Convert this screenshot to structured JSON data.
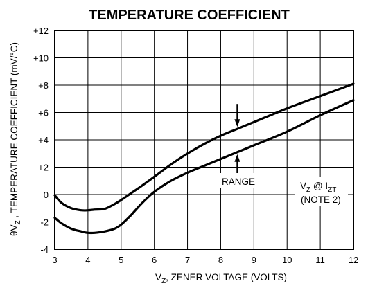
{
  "chart_data": {
    "type": "line",
    "title": "TEMPERATURE COEFFICIENT",
    "xlabel": {
      "main": "V",
      "sub": "Z",
      "rest": ", ZENER VOLTAGE (VOLTS)"
    },
    "ylabel": {
      "theta": "θV",
      "sub": "Z",
      "rest": " , TEMPERATURE COEFFICIENT (mV/°C)"
    },
    "xlim": [
      3,
      12
    ],
    "ylim": [
      -4,
      12
    ],
    "x_ticks": [
      3,
      4,
      5,
      6,
      7,
      8,
      9,
      10,
      11,
      12
    ],
    "y_ticks": [
      -4,
      -2,
      0,
      2,
      4,
      6,
      8,
      10,
      12
    ],
    "x_tick_labels": [
      "3",
      "4",
      "5",
      "6",
      "7",
      "8",
      "9",
      "10",
      "11",
      "12"
    ],
    "y_tick_labels": [
      "-4",
      "-2",
      "0",
      "+2",
      "+4",
      "+6",
      "+8",
      "+10",
      "+12"
    ],
    "grid": true,
    "line_color": "#000000",
    "series": [
      {
        "x": [
          3.0,
          3.2,
          3.5,
          3.8,
          4.0,
          4.2,
          4.5,
          4.8,
          5.0,
          5.3,
          5.6,
          6.0,
          6.5,
          7.0,
          7.5,
          8.0,
          8.5,
          9.0,
          10.0,
          11.0,
          12.0
        ],
        "values": [
          -0.05,
          -0.6,
          -1.0,
          -1.15,
          -1.15,
          -1.1,
          -1.05,
          -0.7,
          -0.4,
          0.1,
          0.6,
          1.3,
          2.2,
          3.0,
          3.7,
          4.3,
          4.8,
          5.3,
          6.3,
          7.2,
          8.1
        ]
      },
      {
        "x": [
          3.0,
          3.2,
          3.5,
          3.8,
          4.0,
          4.2,
          4.5,
          4.8,
          5.0,
          5.3,
          5.6,
          6.0,
          6.5,
          7.0,
          7.5,
          8.0,
          8.5,
          9.0,
          10.0,
          11.0,
          12.0
        ],
        "values": [
          -1.7,
          -2.1,
          -2.5,
          -2.7,
          -2.8,
          -2.8,
          -2.7,
          -2.5,
          -2.2,
          -1.5,
          -0.7,
          0.2,
          1.0,
          1.6,
          2.1,
          2.6,
          3.1,
          3.6,
          4.6,
          5.8,
          6.9
        ]
      }
    ],
    "annotations": {
      "range_label": "RANGE",
      "range_arrow_x": 8.5,
      "note_line1": {
        "main": "V",
        "sub1": "Z",
        "mid": " @ I",
        "sub2": "ZT"
      },
      "note_line2": "(NOTE 2)"
    }
  }
}
